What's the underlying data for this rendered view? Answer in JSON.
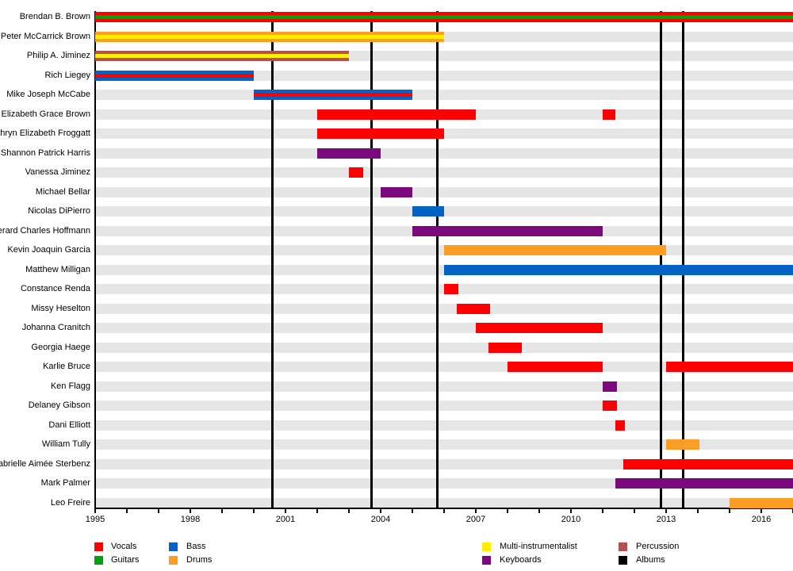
{
  "chart_data": {
    "type": "timeline",
    "description": "Band members timeline (Gantt-style), colored by instrument, with vertical black lines marking album releases",
    "x_axis": {
      "start": 1995,
      "end": 2017,
      "minor_tick_interval_years": 1,
      "labels": [
        "1995",
        "1998",
        "2001",
        "2004",
        "2007",
        "2010",
        "2013",
        "2016"
      ],
      "label_years": [
        1995,
        1998,
        2001,
        2004,
        2007,
        2010,
        2013,
        2016
      ]
    },
    "colors": {
      "vocals": "#ff0000",
      "guitars": "#00a40a",
      "bass": "#0563c6",
      "drums": "#fc9e24",
      "multi_instrumentalist": "#ffee00",
      "keyboards": "#7b087d",
      "percussion": "#b05252",
      "albums": "#000000",
      "row_track": "#e6e6e6"
    },
    "albums_release_years": [
      2000.6,
      2003.7,
      2005.8,
      2012.85,
      2013.55
    ],
    "members": [
      {
        "name": "Brendan B. Brown",
        "bars": [
          {
            "from": 1995.0,
            "to": 2017.0,
            "color": "vocals",
            "stripe": "guitars"
          }
        ]
      },
      {
        "name": "Peter McCarrick Brown",
        "bars": [
          {
            "from": 1995.0,
            "to": 2006.0,
            "color": "drums",
            "stripe": "multi_instrumentalist"
          }
        ]
      },
      {
        "name": "Philip A. Jiminez",
        "bars": [
          {
            "from": 1995.0,
            "to": 2003.0,
            "color": "percussion",
            "stripe": "multi_instrumentalist"
          }
        ]
      },
      {
        "name": "Rich Liegey",
        "bars": [
          {
            "from": 1995.0,
            "to": 2000.0,
            "color": "bass",
            "stripe": "vocals"
          }
        ]
      },
      {
        "name": "Mike Joseph McCabe",
        "bars": [
          {
            "from": 2000.0,
            "to": 2005.0,
            "color": "bass",
            "stripe": "vocals"
          }
        ]
      },
      {
        "name": "Elizabeth Grace Brown",
        "bars": [
          {
            "from": 2002.0,
            "to": 2007.0,
            "color": "vocals"
          },
          {
            "from": 2011.0,
            "to": 2011.4,
            "color": "vocals"
          }
        ]
      },
      {
        "name": "Kathryn Elizabeth Froggatt",
        "bars": [
          {
            "from": 2002.0,
            "to": 2006.0,
            "color": "vocals"
          }
        ]
      },
      {
        "name": "Shannon Patrick Harris",
        "bars": [
          {
            "from": 2002.0,
            "to": 2004.0,
            "color": "keyboards"
          }
        ]
      },
      {
        "name": "Vanessa Jiminez",
        "bars": [
          {
            "from": 2003.0,
            "to": 2003.45,
            "color": "vocals"
          }
        ]
      },
      {
        "name": "Michael Bellar",
        "bars": [
          {
            "from": 2004.0,
            "to": 2005.0,
            "color": "keyboards"
          }
        ]
      },
      {
        "name": "Nicolas DiPierro",
        "bars": [
          {
            "from": 2005.0,
            "to": 2006.0,
            "color": "bass"
          }
        ]
      },
      {
        "name": "Gerard Charles Hoffmann",
        "bars": [
          {
            "from": 2005.0,
            "to": 2011.0,
            "color": "keyboards"
          }
        ]
      },
      {
        "name": "Kevin Joaquin Garcia",
        "bars": [
          {
            "from": 2006.0,
            "to": 2013.0,
            "color": "drums"
          }
        ]
      },
      {
        "name": "Matthew Milligan",
        "bars": [
          {
            "from": 2006.0,
            "to": 2017.0,
            "color": "bass"
          }
        ]
      },
      {
        "name": "Constance Renda",
        "bars": [
          {
            "from": 2006.0,
            "to": 2006.45,
            "color": "vocals"
          }
        ]
      },
      {
        "name": "Missy Heselton",
        "bars": [
          {
            "from": 2006.4,
            "to": 2007.45,
            "color": "vocals"
          }
        ]
      },
      {
        "name": "Johanna Cranitch",
        "bars": [
          {
            "from": 2007.0,
            "to": 2011.0,
            "color": "vocals"
          }
        ]
      },
      {
        "name": "Georgia Haege",
        "bars": [
          {
            "from": 2007.4,
            "to": 2008.45,
            "color": "vocals"
          }
        ]
      },
      {
        "name": "Karlie Bruce",
        "bars": [
          {
            "from": 2008.0,
            "to": 2011.0,
            "color": "vocals"
          },
          {
            "from": 2013.0,
            "to": 2017.0,
            "color": "vocals"
          }
        ]
      },
      {
        "name": "Ken Flagg",
        "bars": [
          {
            "from": 2011.0,
            "to": 2011.45,
            "color": "keyboards"
          }
        ]
      },
      {
        "name": "Delaney Gibson",
        "bars": [
          {
            "from": 2011.0,
            "to": 2011.45,
            "color": "vocals"
          }
        ]
      },
      {
        "name": "Dani Elliott",
        "bars": [
          {
            "from": 2011.4,
            "to": 2011.7,
            "color": "vocals"
          }
        ]
      },
      {
        "name": "William Tully",
        "bars": [
          {
            "from": 2013.0,
            "to": 2014.05,
            "color": "drums"
          }
        ]
      },
      {
        "name": "Gabrielle Aimée Sterbenz",
        "bars": [
          {
            "from": 2011.65,
            "to": 2017.0,
            "color": "vocals"
          }
        ]
      },
      {
        "name": "Mark Palmer",
        "bars": [
          {
            "from": 2011.4,
            "to": 2017.0,
            "color": "keyboards"
          }
        ]
      },
      {
        "name": "Leo Freire",
        "bars": [
          {
            "from": 2015.0,
            "to": 2017.0,
            "color": "drums"
          }
        ]
      }
    ],
    "legend": {
      "position": "bottom",
      "columns": [
        [
          {
            "label": "Vocals",
            "color": "vocals"
          },
          {
            "label": "Guitars",
            "color": "guitars"
          }
        ],
        [
          {
            "label": "Bass",
            "color": "bass"
          },
          {
            "label": "Drums",
            "color": "drums"
          }
        ],
        [
          {
            "label": "Multi-instrumentalist",
            "color": "multi_instrumentalist"
          },
          {
            "label": "Keyboards",
            "color": "keyboards"
          }
        ],
        [
          {
            "label": "Percussion",
            "color": "percussion"
          },
          {
            "label": "Albums",
            "color": "albums"
          }
        ]
      ]
    }
  }
}
